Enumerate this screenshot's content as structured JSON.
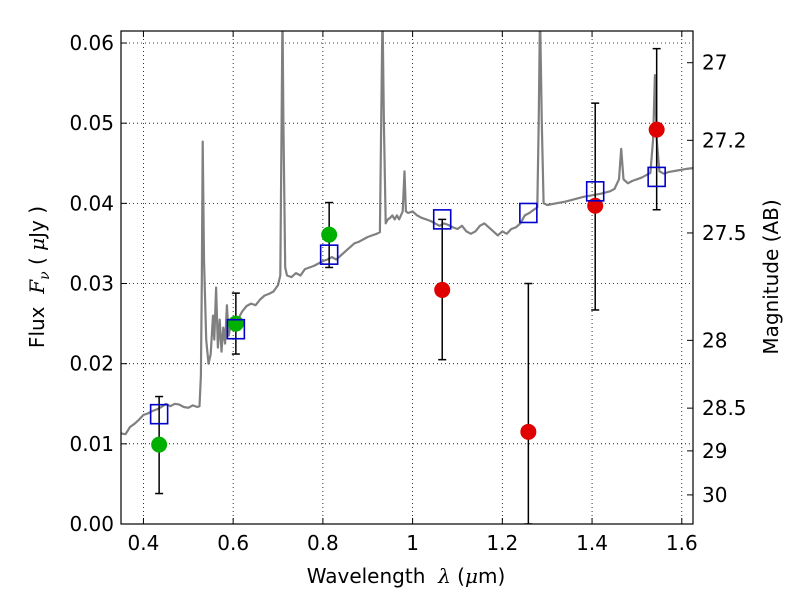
{
  "chart_data": {
    "type": "scatter",
    "title": "",
    "xlabel": {
      "text": "Wavelength",
      "symbol": "λ",
      "unit_open": " (",
      "unit_mu": "μ",
      "unit_rest": "m)"
    },
    "ylabel": {
      "text": "Flux",
      "symbol": "F",
      "subscript": "ν",
      "unit_open": " ( ",
      "unit_mu": "μ",
      "unit_rest": "Jy )"
    },
    "ylabel_right": "Magnitude (AB)",
    "xlim": [
      0.35,
      1.625
    ],
    "ylim": [
      0.0,
      0.0615
    ],
    "grid": true,
    "xticks": [
      0.4,
      0.6,
      0.8,
      1.0,
      1.2,
      1.4,
      1.6
    ],
    "xtick_labels": [
      "0.4",
      "0.6",
      "0.8",
      "1",
      "1.2",
      "1.4",
      "1.6"
    ],
    "yticks": [
      0.0,
      0.01,
      0.02,
      0.03,
      0.04,
      0.05,
      0.06
    ],
    "ytick_labels": [
      "0.00",
      "0.01",
      "0.02",
      "0.03",
      "0.04",
      "0.05",
      "0.06"
    ],
    "right_ticks": [
      {
        "label": "27",
        "mag": 27.0
      },
      {
        "label": "27.2",
        "mag": 27.2
      },
      {
        "label": "27.5",
        "mag": 27.5
      },
      {
        "label": "28",
        "mag": 28.0
      },
      {
        "label": "28.5",
        "mag": 28.5
      },
      {
        "label": "29",
        "mag": 29.0
      },
      {
        "label": "30",
        "mag": 30.0
      }
    ],
    "series": [
      {
        "marker": "circle",
        "color": "#00b000",
        "points": [
          {
            "x": 0.435,
            "y": 0.0099,
            "err": [
              0.0038,
              0.0159
            ]
          },
          {
            "x": 0.606,
            "y": 0.025,
            "err": [
              0.0212,
              0.0288
            ]
          },
          {
            "x": 0.814,
            "y": 0.0361,
            "err": [
              0.032,
              0.0401
            ]
          }
        ]
      },
      {
        "marker": "circle",
        "color": "#e00000",
        "points": [
          {
            "x": 1.066,
            "y": 0.0292,
            "err": [
              0.0205,
              0.038
            ]
          },
          {
            "x": 1.258,
            "y": 0.0115,
            "err": [
              0.0,
              0.03
            ]
          },
          {
            "x": 1.407,
            "y": 0.0397,
            "err": [
              0.0267,
              0.0525
            ]
          },
          {
            "x": 1.544,
            "y": 0.0492,
            "err": [
              0.0392,
              0.0593
            ]
          }
        ]
      },
      {
        "marker": "open-square",
        "color": "#0000cc",
        "points": [
          {
            "x": 0.435,
            "y": 0.0137
          },
          {
            "x": 0.606,
            "y": 0.0243
          },
          {
            "x": 0.814,
            "y": 0.0336
          },
          {
            "x": 1.066,
            "y": 0.038
          },
          {
            "x": 1.258,
            "y": 0.0388
          },
          {
            "x": 1.407,
            "y": 0.0415
          },
          {
            "x": 1.544,
            "y": 0.0433
          }
        ]
      }
    ],
    "spectrum": {
      "color": "#808080",
      "points": [
        [
          0.35,
          0.0113
        ],
        [
          0.36,
          0.0112
        ],
        [
          0.37,
          0.0121
        ],
        [
          0.38,
          0.0125
        ],
        [
          0.39,
          0.013
        ],
        [
          0.4,
          0.0136
        ],
        [
          0.41,
          0.0138
        ],
        [
          0.42,
          0.0141
        ],
        [
          0.43,
          0.0143
        ],
        [
          0.44,
          0.0146
        ],
        [
          0.45,
          0.015
        ],
        [
          0.46,
          0.0147
        ],
        [
          0.47,
          0.015
        ],
        [
          0.48,
          0.0149
        ],
        [
          0.49,
          0.0146
        ],
        [
          0.5,
          0.0145
        ],
        [
          0.51,
          0.0148
        ],
        [
          0.52,
          0.0146
        ],
        [
          0.525,
          0.0147
        ],
        [
          0.528,
          0.0185
        ],
        [
          0.53,
          0.03
        ],
        [
          0.532,
          0.0477
        ],
        [
          0.535,
          0.033
        ],
        [
          0.54,
          0.023
        ],
        [
          0.545,
          0.02
        ],
        [
          0.55,
          0.0212
        ],
        [
          0.555,
          0.026
        ],
        [
          0.558,
          0.023
        ],
        [
          0.562,
          0.0295
        ],
        [
          0.566,
          0.022
        ],
        [
          0.57,
          0.0255
        ],
        [
          0.574,
          0.0215
        ],
        [
          0.578,
          0.0245
        ],
        [
          0.582,
          0.0225
        ],
        [
          0.586,
          0.0273
        ],
        [
          0.59,
          0.0235
        ],
        [
          0.595,
          0.025
        ],
        [
          0.6,
          0.0242
        ],
        [
          0.605,
          0.0255
        ],
        [
          0.61,
          0.0248
        ],
        [
          0.615,
          0.026
        ],
        [
          0.62,
          0.0265
        ],
        [
          0.63,
          0.0272
        ],
        [
          0.64,
          0.0275
        ],
        [
          0.65,
          0.0273
        ],
        [
          0.66,
          0.028
        ],
        [
          0.67,
          0.0285
        ],
        [
          0.68,
          0.0287
        ],
        [
          0.69,
          0.029
        ],
        [
          0.7,
          0.0298
        ],
        [
          0.705,
          0.031
        ],
        [
          0.708,
          0.05
        ],
        [
          0.71,
          0.064
        ],
        [
          0.712,
          0.05
        ],
        [
          0.716,
          0.032
        ],
        [
          0.72,
          0.031
        ],
        [
          0.73,
          0.0308
        ],
        [
          0.74,
          0.0313
        ],
        [
          0.75,
          0.031
        ],
        [
          0.76,
          0.0318
        ],
        [
          0.77,
          0.032
        ],
        [
          0.78,
          0.0322
        ],
        [
          0.79,
          0.0325
        ],
        [
          0.8,
          0.0328
        ],
        [
          0.81,
          0.033
        ],
        [
          0.82,
          0.0333
        ],
        [
          0.83,
          0.033
        ],
        [
          0.84,
          0.0335
        ],
        [
          0.85,
          0.034
        ],
        [
          0.86,
          0.0345
        ],
        [
          0.87,
          0.035
        ],
        [
          0.88,
          0.0352
        ],
        [
          0.89,
          0.0355
        ],
        [
          0.9,
          0.0358
        ],
        [
          0.91,
          0.036
        ],
        [
          0.92,
          0.0362
        ],
        [
          0.927,
          0.0364
        ],
        [
          0.93,
          0.05
        ],
        [
          0.933,
          0.064
        ],
        [
          0.936,
          0.05
        ],
        [
          0.94,
          0.0375
        ],
        [
          0.945,
          0.038
        ],
        [
          0.95,
          0.0382
        ],
        [
          0.955,
          0.0385
        ],
        [
          0.96,
          0.038
        ],
        [
          0.965,
          0.0385
        ],
        [
          0.97,
          0.038
        ],
        [
          0.978,
          0.039
        ],
        [
          0.982,
          0.044
        ],
        [
          0.985,
          0.039
        ],
        [
          0.99,
          0.0388
        ],
        [
          1.0,
          0.039
        ],
        [
          1.01,
          0.0385
        ],
        [
          1.02,
          0.0382
        ],
        [
          1.03,
          0.038
        ],
        [
          1.04,
          0.0378
        ],
        [
          1.05,
          0.0375
        ],
        [
          1.06,
          0.0372
        ],
        [
          1.07,
          0.0375
        ],
        [
          1.08,
          0.0373
        ],
        [
          1.09,
          0.037
        ],
        [
          1.1,
          0.0368
        ],
        [
          1.11,
          0.0372
        ],
        [
          1.12,
          0.0365
        ],
        [
          1.13,
          0.0362
        ],
        [
          1.14,
          0.0365
        ],
        [
          1.15,
          0.0372
        ],
        [
          1.16,
          0.0375
        ],
        [
          1.17,
          0.037
        ],
        [
          1.18,
          0.0365
        ],
        [
          1.19,
          0.036
        ],
        [
          1.2,
          0.0365
        ],
        [
          1.21,
          0.0362
        ],
        [
          1.22,
          0.0368
        ],
        [
          1.23,
          0.037
        ],
        [
          1.24,
          0.0375
        ],
        [
          1.25,
          0.0385
        ],
        [
          1.26,
          0.0388
        ],
        [
          1.27,
          0.0392
        ],
        [
          1.278,
          0.0395
        ],
        [
          1.281,
          0.05
        ],
        [
          1.284,
          0.064
        ],
        [
          1.288,
          0.05
        ],
        [
          1.292,
          0.04
        ],
        [
          1.3,
          0.0398
        ],
        [
          1.32,
          0.04
        ],
        [
          1.34,
          0.0402
        ],
        [
          1.36,
          0.0405
        ],
        [
          1.38,
          0.0408
        ],
        [
          1.4,
          0.041
        ],
        [
          1.42,
          0.0412
        ],
        [
          1.44,
          0.0415
        ],
        [
          1.45,
          0.0418
        ],
        [
          1.46,
          0.043
        ],
        [
          1.465,
          0.0468
        ],
        [
          1.47,
          0.043
        ],
        [
          1.48,
          0.0425
        ],
        [
          1.49,
          0.0428
        ],
        [
          1.5,
          0.043
        ],
        [
          1.51,
          0.0432
        ],
        [
          1.52,
          0.0435
        ],
        [
          1.53,
          0.0438
        ],
        [
          1.536,
          0.048
        ],
        [
          1.54,
          0.056
        ],
        [
          1.544,
          0.048
        ],
        [
          1.55,
          0.044
        ],
        [
          1.56,
          0.0437
        ],
        [
          1.57,
          0.0439
        ],
        [
          1.58,
          0.044
        ],
        [
          1.59,
          0.0441
        ],
        [
          1.6,
          0.0442
        ],
        [
          1.61,
          0.0443
        ],
        [
          1.625,
          0.0444
        ]
      ]
    }
  }
}
